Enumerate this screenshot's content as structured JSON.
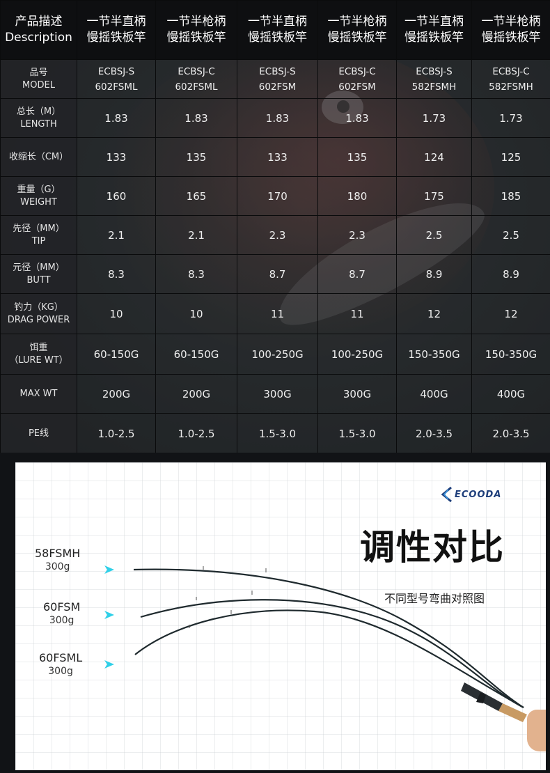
{
  "table": {
    "header_label": [
      "产品描述",
      "Description"
    ],
    "columns": [
      {
        "line1": "一节半直柄",
        "line2": "慢摇铁板竿"
      },
      {
        "line1": "一节半枪柄",
        "line2": "慢摇铁板竿"
      },
      {
        "line1": "一节半直柄",
        "line2": "慢摇铁板竿"
      },
      {
        "line1": "一节半枪柄",
        "line2": "慢摇铁板竿"
      },
      {
        "line1": "一节半直柄",
        "line2": "慢摇铁板竿"
      },
      {
        "line1": "一节半枪柄",
        "line2": "慢摇铁板竿"
      }
    ],
    "rows": [
      {
        "label": [
          "品号",
          "MODEL"
        ],
        "values": [
          [
            "ECBSJ-S",
            "602FSML"
          ],
          [
            "ECBSJ-C",
            "602FSML"
          ],
          [
            "ECBSJ-S",
            "602FSM"
          ],
          [
            "ECBSJ-C",
            "602FSM"
          ],
          [
            "ECBSJ-S",
            "582FSMH"
          ],
          [
            "ECBSJ-C",
            "582FSMH"
          ]
        ]
      },
      {
        "label": [
          "总长（M）",
          "LENGTH"
        ],
        "values": [
          "1.83",
          "1.83",
          "1.83",
          "1.83",
          "1.73",
          "1.73"
        ]
      },
      {
        "label": [
          "收缩长（CM）"
        ],
        "values": [
          "133",
          "135",
          "133",
          "135",
          "124",
          "125"
        ]
      },
      {
        "label": [
          "重量（G）",
          "WEIGHT"
        ],
        "values": [
          "160",
          "165",
          "170",
          "180",
          "175",
          "185"
        ]
      },
      {
        "label": [
          "先径（MM）",
          "TIP"
        ],
        "values": [
          "2.1",
          "2.1",
          "2.3",
          "2.3",
          "2.5",
          "2.5"
        ]
      },
      {
        "label": [
          "元径（MM）",
          "BUTT"
        ],
        "values": [
          "8.3",
          "8.3",
          "8.7",
          "8.7",
          "8.9",
          "8.9"
        ]
      },
      {
        "label": [
          "钓力（KG）",
          "DRAG POWER"
        ],
        "values": [
          "10",
          "10",
          "11",
          "11",
          "12",
          "12"
        ]
      },
      {
        "label": [
          "饵重",
          "（LURE WT）"
        ],
        "values": [
          "60-150G",
          "60-150G",
          "100-250G",
          "100-250G",
          "150-350G",
          "150-350G"
        ]
      },
      {
        "label": [
          "MAX WT"
        ],
        "values": [
          "200G",
          "200G",
          "300G",
          "300G",
          "400G",
          "400G"
        ]
      },
      {
        "label": [
          "PE线"
        ],
        "values": [
          "1.0-2.5",
          "1.0-2.5",
          "1.5-3.0",
          "1.5-3.0",
          "2.0-3.5",
          "2.0-3.5"
        ]
      }
    ]
  },
  "comparison": {
    "brand": "ECOODA",
    "title": "调性对比",
    "subtitle": "不同型号弯曲对照图",
    "rods": [
      {
        "model": "58FSMH",
        "weight": "300g"
      },
      {
        "model": "60FSM",
        "weight": "300g"
      },
      {
        "model": "60FSML",
        "weight": "300g"
      }
    ],
    "colors": {
      "arrow": "#2fd0e8",
      "rod": "#1f2a2e",
      "cork": "#c89a63",
      "brand": "#1d3d7a"
    },
    "icons": [
      "arrow-right-icon",
      "ecooda-logo-icon"
    ]
  }
}
